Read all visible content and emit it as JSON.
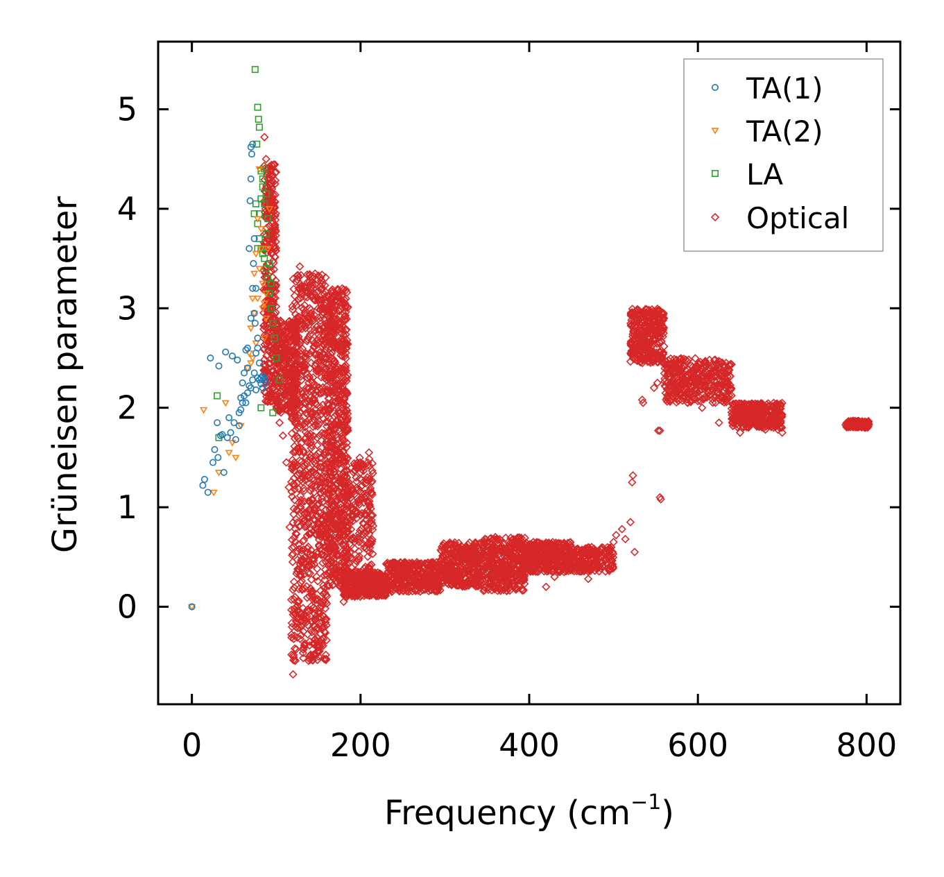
{
  "chart_data": {
    "type": "scatter",
    "title": "",
    "xlabel": "Frequency (cm",
    "xlabel_sup": "−1",
    "xlabel_end": ")",
    "ylabel": "Grüneisen parameter",
    "xlim": [
      -40,
      840
    ],
    "ylim": [
      -0.98,
      5.68
    ],
    "xticks": [
      0,
      200,
      400,
      600,
      800
    ],
    "xtick_labels": [
      "0",
      "200",
      "400",
      "600",
      "800"
    ],
    "yticks": [
      0,
      1,
      2,
      3,
      4,
      5
    ],
    "ytick_labels": [
      "0",
      "1",
      "2",
      "3",
      "4",
      "5"
    ],
    "grid": false,
    "legend_position": "top-right",
    "series": [
      {
        "name": "TA(1)",
        "marker": "circle",
        "color": "#1f77b4",
        "points": [
          [
            0,
            0
          ],
          [
            13,
            1.22
          ],
          [
            15,
            1.28
          ],
          [
            19,
            1.15
          ],
          [
            22,
            2.5
          ],
          [
            25,
            1.45
          ],
          [
            27,
            1.58
          ],
          [
            30,
            1.85
          ],
          [
            31,
            1.5
          ],
          [
            32,
            2.42
          ],
          [
            34,
            1.72
          ],
          [
            36,
            1.73
          ],
          [
            38,
            1.35
          ],
          [
            40,
            2.56
          ],
          [
            42,
            1.7
          ],
          [
            44,
            1.9
          ],
          [
            46,
            1.75
          ],
          [
            48,
            2.52
          ],
          [
            50,
            1.85
          ],
          [
            52,
            1.68
          ],
          [
            54,
            2.48
          ],
          [
            56,
            1.95
          ],
          [
            58,
            2.1
          ],
          [
            60,
            2.25
          ],
          [
            62,
            2.35
          ],
          [
            64,
            2.58
          ],
          [
            66,
            2.4
          ],
          [
            68,
            3.6
          ],
          [
            69,
            4.08
          ],
          [
            70,
            4.3
          ],
          [
            70,
            4.62
          ],
          [
            71,
            4.55
          ],
          [
            72,
            4.65
          ],
          [
            73,
            3.45
          ],
          [
            74,
            2.95
          ],
          [
            75,
            2.85
          ],
          [
            76,
            2.55
          ],
          [
            78,
            2.6
          ],
          [
            80,
            2.45
          ],
          [
            82,
            2.3
          ],
          [
            84,
            2.2
          ],
          [
            86,
            2.3
          ],
          [
            88,
            2.25
          ],
          [
            64,
            2.05
          ],
          [
            66,
            2.15
          ],
          [
            68,
            2.22
          ],
          [
            72,
            2.28
          ],
          [
            74,
            2.35
          ],
          [
            76,
            2.18
          ],
          [
            78,
            2.3
          ],
          [
            80,
            2.28
          ],
          [
            82,
            2.24
          ],
          [
            84,
            2.32
          ],
          [
            86,
            2.28
          ],
          [
            58,
            1.98
          ],
          [
            60,
            2.05
          ],
          [
            56,
            1.82
          ],
          [
            62,
            2.12
          ],
          [
            70,
            2.2
          ],
          [
            72,
            3.2
          ],
          [
            74,
            3.7
          ],
          [
            76,
            3.2
          ],
          [
            78,
            2.7
          ],
          [
            70,
            2.9
          ],
          [
            66,
            2.6
          ]
        ]
      },
      {
        "name": "TA(2)",
        "marker": "triangle-down",
        "color": "#ff7f0e",
        "points": [
          [
            0,
            0
          ],
          [
            14,
            1.98
          ],
          [
            26,
            1.15
          ],
          [
            32,
            1.35
          ],
          [
            40,
            2.05
          ],
          [
            44,
            1.55
          ],
          [
            48,
            1.65
          ],
          [
            52,
            1.5
          ],
          [
            58,
            1.82
          ],
          [
            66,
            2.4
          ],
          [
            70,
            2.8
          ],
          [
            72,
            3.1
          ],
          [
            74,
            3.35
          ],
          [
            76,
            3.55
          ],
          [
            78,
            3.9
          ],
          [
            80,
            4.4
          ],
          [
            82,
            3.8
          ],
          [
            84,
            3.25
          ],
          [
            86,
            3.05
          ],
          [
            88,
            3.15
          ],
          [
            90,
            3.6
          ],
          [
            92,
            4.0
          ],
          [
            74,
            2.95
          ],
          [
            78,
            3.1
          ],
          [
            80,
            3.4
          ],
          [
            82,
            3.6
          ],
          [
            84,
            3.0
          ],
          [
            86,
            2.7
          ],
          [
            88,
            2.9
          ],
          [
            76,
            2.65
          ],
          [
            72,
            2.5
          ],
          [
            70,
            2.45
          ],
          [
            68,
            2.55
          ]
        ]
      },
      {
        "name": "LA",
        "marker": "square",
        "color": "#2ca02c",
        "points": [
          [
            30,
            2.12
          ],
          [
            32,
            1.7
          ],
          [
            75,
            5.4
          ],
          [
            78,
            5.02
          ],
          [
            80,
            4.82
          ],
          [
            79,
            4.9
          ],
          [
            77,
            4.65
          ],
          [
            82,
            4.38
          ],
          [
            84,
            4.22
          ],
          [
            86,
            4.05
          ],
          [
            76,
            4.05
          ],
          [
            78,
            3.85
          ],
          [
            80,
            3.7
          ],
          [
            82,
            3.6
          ],
          [
            84,
            3.55
          ],
          [
            86,
            3.5
          ],
          [
            88,
            3.4
          ],
          [
            90,
            3.3
          ],
          [
            92,
            3.15
          ],
          [
            94,
            3.0
          ],
          [
            96,
            2.85
          ],
          [
            98,
            2.7
          ],
          [
            100,
            2.5
          ],
          [
            104,
            2.28
          ],
          [
            96,
            1.95
          ],
          [
            82,
            2.0
          ],
          [
            84,
            4.3
          ],
          [
            86,
            4.4
          ],
          [
            88,
            4.15
          ],
          [
            90,
            3.9
          ],
          [
            80,
            3.95
          ],
          [
            82,
            4.1
          ],
          [
            88,
            3.75
          ],
          [
            92,
            3.45
          ],
          [
            94,
            3.25
          ],
          [
            78,
            3.6
          ],
          [
            74,
            3.95
          ]
        ]
      },
      {
        "name": "Optical",
        "marker": "diamond",
        "color": "#d62728",
        "bands": [
          {
            "x0": 85,
            "x1": 100,
            "y0": 2.05,
            "y1": 4.45,
            "n": 360
          },
          {
            "x0": 100,
            "x1": 125,
            "y0": 1.95,
            "y1": 2.9,
            "n": 280
          },
          {
            "x0": 118,
            "x1": 160,
            "y0": -0.55,
            "y1": 3.35,
            "n": 900
          },
          {
            "x0": 160,
            "x1": 185,
            "y0": 0.2,
            "y1": 3.2,
            "n": 700
          },
          {
            "x0": 180,
            "x1": 215,
            "y0": 0.15,
            "y1": 1.5,
            "n": 250
          },
          {
            "x0": 180,
            "x1": 230,
            "y0": 0.1,
            "y1": 0.35,
            "n": 300
          },
          {
            "x0": 230,
            "x1": 295,
            "y0": 0.15,
            "y1": 0.45,
            "n": 350
          },
          {
            "x0": 295,
            "x1": 345,
            "y0": 0.2,
            "y1": 0.65,
            "n": 350
          },
          {
            "x0": 345,
            "x1": 395,
            "y0": 0.15,
            "y1": 0.7,
            "n": 380
          },
          {
            "x0": 395,
            "x1": 450,
            "y0": 0.35,
            "y1": 0.65,
            "n": 350
          },
          {
            "x0": 450,
            "x1": 500,
            "y0": 0.35,
            "y1": 0.6,
            "n": 200
          },
          {
            "x0": 520,
            "x1": 560,
            "y0": 2.45,
            "y1": 3.0,
            "n": 320
          },
          {
            "x0": 560,
            "x1": 640,
            "y0": 2.05,
            "y1": 2.5,
            "n": 380
          },
          {
            "x0": 640,
            "x1": 700,
            "y0": 1.8,
            "y1": 2.05,
            "n": 320
          },
          {
            "x0": 775,
            "x1": 803,
            "y0": 1.8,
            "y1": 1.87,
            "n": 120
          }
        ],
        "points": [
          [
            86,
            4.72
          ],
          [
            88,
            4.5
          ],
          [
            90,
            4.3
          ],
          [
            95,
            3.85
          ],
          [
            98,
            3.6
          ],
          [
            104,
            1.85
          ],
          [
            108,
            1.72
          ],
          [
            112,
            1.45
          ],
          [
            115,
            1.2
          ],
          [
            116,
            0.8
          ],
          [
            118,
            0.07
          ],
          [
            118,
            -0.28
          ],
          [
            120,
            -0.68
          ],
          [
            122,
            -0.42
          ],
          [
            128,
            3.42
          ],
          [
            130,
            0.45
          ],
          [
            125,
            0.35
          ],
          [
            150,
            -0.45
          ],
          [
            180,
            0.05
          ],
          [
            185,
            0.12
          ],
          [
            200,
            1.35
          ],
          [
            213,
            1.25
          ],
          [
            208,
            1.3
          ],
          [
            210,
            1.55
          ],
          [
            420,
            0.2
          ],
          [
            425,
            0.55
          ],
          [
            430,
            0.3
          ],
          [
            470,
            0.28
          ],
          [
            480,
            0.45
          ],
          [
            495,
            0.58
          ],
          [
            500,
            0.65
          ],
          [
            503,
            0.72
          ],
          [
            510,
            0.78
          ],
          [
            514,
            0.68
          ],
          [
            520,
            0.85
          ],
          [
            522,
            1.25
          ],
          [
            523,
            1.32
          ],
          [
            525,
            0.55
          ],
          [
            534,
            2.08
          ],
          [
            535,
            2.05
          ],
          [
            542,
            2.5
          ],
          [
            548,
            2.2
          ],
          [
            552,
            2.25
          ],
          [
            553,
            1.77
          ],
          [
            555,
            1.77
          ],
          [
            556,
            1.08
          ],
          [
            555,
            1.1
          ],
          [
            590,
            2.25
          ],
          [
            600,
            2.1
          ],
          [
            605,
            2.0
          ],
          [
            620,
            2.1
          ],
          [
            625,
            1.85
          ],
          [
            645,
            1.95
          ],
          [
            650,
            1.75
          ],
          [
            660,
            1.85
          ],
          [
            680,
            1.78
          ],
          [
            690,
            1.82
          ],
          [
            695,
            1.78
          ],
          [
            700,
            1.75
          ]
        ]
      }
    ]
  }
}
